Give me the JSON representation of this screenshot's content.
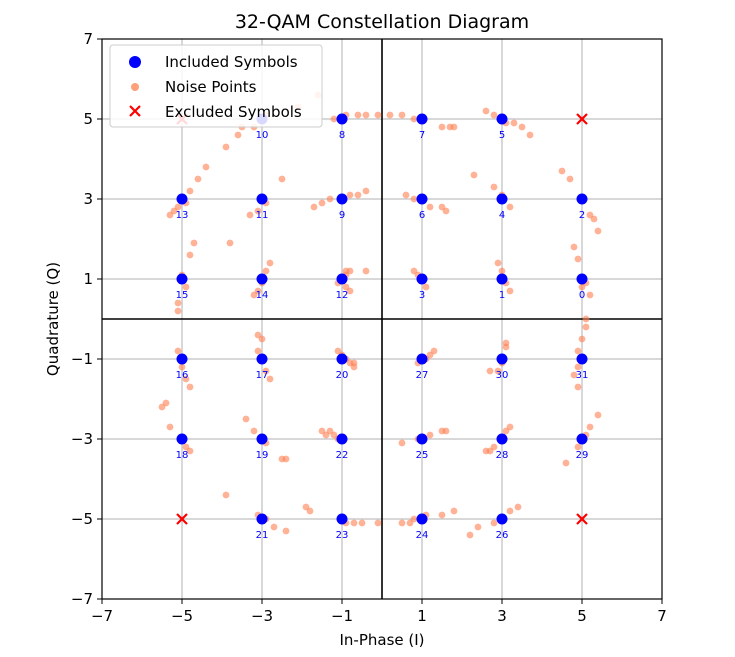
{
  "chart_data": {
    "type": "scatter",
    "title": "32-QAM Constellation Diagram",
    "xlabel": "In-Phase (I)",
    "ylabel": "Quadrature (Q)",
    "xlim": [
      -7,
      7
    ],
    "ylim": [
      -7,
      7
    ],
    "xticks": [
      -7,
      -5,
      -3,
      -1,
      1,
      3,
      5,
      7
    ],
    "yticks": [
      -7,
      -5,
      -3,
      -1,
      1,
      3,
      5,
      7
    ],
    "grid": true,
    "legend_position": "top-left",
    "legend": [
      {
        "label": "Included Symbols",
        "marker": "circle",
        "color": "#0000ff"
      },
      {
        "label": "Noise Points",
        "marker": "circle",
        "color": "#ffa07a"
      },
      {
        "label": "Excluded Symbols",
        "marker": "x",
        "color": "#ff0000"
      }
    ],
    "included_symbols": [
      {
        "label": "0",
        "x": 5,
        "y": 1
      },
      {
        "label": "1",
        "x": 3,
        "y": 1
      },
      {
        "label": "2",
        "x": 5,
        "y": 3
      },
      {
        "label": "3",
        "x": 1,
        "y": 1
      },
      {
        "label": "4",
        "x": 3,
        "y": 3
      },
      {
        "label": "5",
        "x": 3,
        "y": 5
      },
      {
        "label": "6",
        "x": 1,
        "y": 3
      },
      {
        "label": "7",
        "x": 1,
        "y": 5
      },
      {
        "label": "8",
        "x": -1,
        "y": 5
      },
      {
        "label": "9",
        "x": -1,
        "y": 3
      },
      {
        "label": "10",
        "x": -3,
        "y": 5
      },
      {
        "label": "11",
        "x": -3,
        "y": 3
      },
      {
        "label": "12",
        "x": -1,
        "y": 1
      },
      {
        "label": "13",
        "x": -5,
        "y": 3
      },
      {
        "label": "14",
        "x": -3,
        "y": 1
      },
      {
        "label": "15",
        "x": -5,
        "y": 1
      },
      {
        "label": "16",
        "x": -5,
        "y": -1
      },
      {
        "label": "17",
        "x": -3,
        "y": -1
      },
      {
        "label": "18",
        "x": -5,
        "y": -3
      },
      {
        "label": "19",
        "x": -3,
        "y": -3
      },
      {
        "label": "20",
        "x": -1,
        "y": -1
      },
      {
        "label": "21",
        "x": -3,
        "y": -5
      },
      {
        "label": "22",
        "x": -1,
        "y": -3
      },
      {
        "label": "23",
        "x": -1,
        "y": -5
      },
      {
        "label": "24",
        "x": 1,
        "y": -5
      },
      {
        "label": "25",
        "x": 1,
        "y": -3
      },
      {
        "label": "26",
        "x": 3,
        "y": -5
      },
      {
        "label": "27",
        "x": 1,
        "y": -1
      },
      {
        "label": "28",
        "x": 3,
        "y": -3
      },
      {
        "label": "29",
        "x": 5,
        "y": -3
      },
      {
        "label": "30",
        "x": 3,
        "y": -1
      },
      {
        "label": "31",
        "x": 5,
        "y": -1
      }
    ],
    "excluded_symbols": [
      {
        "x": 5,
        "y": 5
      },
      {
        "x": -5,
        "y": -5
      },
      {
        "x": -5,
        "y": 5
      },
      {
        "x": 5,
        "y": -5
      }
    ],
    "noise_points": [
      [
        5.1,
        0.9
      ],
      [
        5.2,
        0.6
      ],
      [
        5.0,
        0.8
      ],
      [
        3.2,
        0.7
      ],
      [
        3.1,
        0.9
      ],
      [
        2.9,
        1.4
      ],
      [
        3.0,
        1.2
      ],
      [
        5.3,
        2.5
      ],
      [
        5.4,
        2.2
      ],
      [
        5.2,
        2.6
      ],
      [
        4.7,
        3.5
      ],
      [
        4.5,
        3.7
      ],
      [
        4.8,
        1.8
      ],
      [
        4.9,
        1.5
      ],
      [
        0.9,
        1.1
      ],
      [
        0.8,
        1.2
      ],
      [
        1.0,
        1.0
      ],
      [
        1.1,
        0.8
      ],
      [
        3.2,
        2.8
      ],
      [
        3.0,
        3.1
      ],
      [
        2.8,
        3.3
      ],
      [
        2.3,
        3.6
      ],
      [
        3.5,
        4.8
      ],
      [
        3.3,
        4.9
      ],
      [
        3.7,
        4.6
      ],
      [
        3.1,
        4.9
      ],
      [
        2.8,
        5.1
      ],
      [
        2.6,
        5.2
      ],
      [
        0.6,
        3.1
      ],
      [
        0.8,
        3.0
      ],
      [
        1.2,
        2.8
      ],
      [
        1.5,
        2.8
      ],
      [
        1.6,
        2.7
      ],
      [
        0.5,
        5.1
      ],
      [
        0.8,
        5.0
      ],
      [
        1.5,
        4.8
      ],
      [
        1.7,
        4.8
      ],
      [
        1.8,
        4.8
      ],
      [
        -0.9,
        5.1
      ],
      [
        -0.6,
        5.1
      ],
      [
        -0.4,
        5.1
      ],
      [
        -0.1,
        5.1
      ],
      [
        0.2,
        5.1
      ],
      [
        -1.2,
        5.0
      ],
      [
        -1.3,
        3.0
      ],
      [
        -1.5,
        2.9
      ],
      [
        -0.8,
        3.1
      ],
      [
        -0.6,
        3.1
      ],
      [
        -0.4,
        3.2
      ],
      [
        -1.7,
        2.8
      ],
      [
        -3.2,
        4.8
      ],
      [
        -3.0,
        5.0
      ],
      [
        -3.6,
        4.6
      ],
      [
        -3.5,
        4.8
      ],
      [
        -2.9,
        5.1
      ],
      [
        -2.1,
        5.3
      ],
      [
        -1.6,
        5.6
      ],
      [
        -3.9,
        4.3
      ],
      [
        -3.1,
        2.7
      ],
      [
        -3.3,
        2.6
      ],
      [
        -2.9,
        2.9
      ],
      [
        -2.5,
        3.5
      ],
      [
        -1.1,
        0.9
      ],
      [
        -1.0,
        1.0
      ],
      [
        -0.9,
        1.2
      ],
      [
        -0.9,
        0.8
      ],
      [
        -0.9,
        1.1
      ],
      [
        -0.8,
        1.2
      ],
      [
        -0.8,
        0.7
      ],
      [
        -0.4,
        1.2
      ],
      [
        -5.2,
        2.7
      ],
      [
        -5.1,
        2.8
      ],
      [
        -4.8,
        3.2
      ],
      [
        -4.6,
        3.5
      ],
      [
        -4.4,
        3.8
      ],
      [
        -4.9,
        2.9
      ],
      [
        -5.3,
        2.6
      ],
      [
        -2.9,
        1.2
      ],
      [
        -2.8,
        1.4
      ],
      [
        -3.2,
        0.6
      ],
      [
        -3.1,
        0.7
      ],
      [
        -3.0,
        0.9
      ],
      [
        -5.1,
        0.4
      ],
      [
        -5.1,
        0.2
      ],
      [
        -4.9,
        0.8
      ],
      [
        -4.8,
        1.6
      ],
      [
        -4.7,
        1.9
      ],
      [
        -3.8,
        1.9
      ],
      [
        -5.0,
        1.1
      ],
      [
        -5.1,
        -0.8
      ],
      [
        -5.0,
        -1.2
      ],
      [
        -4.9,
        -1.5
      ],
      [
        -4.8,
        -1.7
      ],
      [
        -3.1,
        -0.4
      ],
      [
        -3.0,
        -0.5
      ],
      [
        -3.1,
        -0.8
      ],
      [
        -2.9,
        -1.3
      ],
      [
        -2.8,
        -1.5
      ],
      [
        -1.0,
        -0.9
      ],
      [
        -0.9,
        -1.0
      ],
      [
        -0.8,
        -1.1
      ],
      [
        -0.7,
        -1.1
      ],
      [
        -0.7,
        -1.2
      ],
      [
        -1.1,
        -0.8
      ],
      [
        0.9,
        -1.1
      ],
      [
        1.1,
        -1.0
      ],
      [
        1.2,
        -0.9
      ],
      [
        1.3,
        -0.8
      ],
      [
        3.1,
        -0.6
      ],
      [
        3.1,
        -0.7
      ],
      [
        3.0,
        -1.1
      ],
      [
        2.9,
        -1.3
      ],
      [
        2.7,
        -1.3
      ],
      [
        5.1,
        -0.2
      ],
      [
        5.1,
        0.0
      ],
      [
        5.0,
        -0.5
      ],
      [
        4.9,
        -0.8
      ],
      [
        4.8,
        -1.4
      ],
      [
        4.9,
        -1.2
      ],
      [
        4.9,
        -1.7
      ],
      [
        -5.3,
        -2.7
      ],
      [
        -5.4,
        -2.1
      ],
      [
        -5.5,
        -2.2
      ],
      [
        -4.9,
        -3.2
      ],
      [
        -4.8,
        -3.3
      ],
      [
        -3.4,
        -2.5
      ],
      [
        -3.2,
        -2.8
      ],
      [
        -2.9,
        -3.1
      ],
      [
        -2.5,
        -3.5
      ],
      [
        -2.4,
        -3.5
      ],
      [
        -1.3,
        -2.8
      ],
      [
        -1.5,
        -2.8
      ],
      [
        -1.2,
        -2.9
      ],
      [
        -1.1,
        -3.0
      ],
      [
        -1.4,
        -2.9
      ],
      [
        0.5,
        -3.1
      ],
      [
        0.9,
        -3.0
      ],
      [
        1.2,
        -2.9
      ],
      [
        1.5,
        -2.8
      ],
      [
        1.6,
        -2.8
      ],
      [
        3.1,
        -2.8
      ],
      [
        3.2,
        -2.7
      ],
      [
        2.8,
        -3.2
      ],
      [
        2.6,
        -3.3
      ],
      [
        2.7,
        -3.3
      ],
      [
        5.1,
        -2.9
      ],
      [
        5.2,
        -2.7
      ],
      [
        5.4,
        -2.4
      ],
      [
        4.9,
        -3.2
      ],
      [
        4.6,
        -3.6
      ],
      [
        -3.9,
        -4.4
      ],
      [
        -3.1,
        -4.9
      ],
      [
        -2.9,
        -5.0
      ],
      [
        -2.7,
        -5.2
      ],
      [
        -2.4,
        -5.3
      ],
      [
        -1.9,
        -4.7
      ],
      [
        -1.8,
        -4.8
      ],
      [
        -0.9,
        -5.1
      ],
      [
        -0.7,
        -5.1
      ],
      [
        -0.5,
        -5.1
      ],
      [
        -0.1,
        -5.1
      ],
      [
        0.5,
        -5.1
      ],
      [
        0.7,
        -5.1
      ],
      [
        0.8,
        -5.0
      ],
      [
        1.1,
        -4.9
      ],
      [
        1.5,
        -4.9
      ],
      [
        1.8,
        -4.8
      ],
      [
        2.2,
        -5.4
      ],
      [
        2.4,
        -5.2
      ],
      [
        2.8,
        -5.1
      ],
      [
        3.2,
        -4.8
      ],
      [
        3.4,
        -4.7
      ]
    ]
  }
}
